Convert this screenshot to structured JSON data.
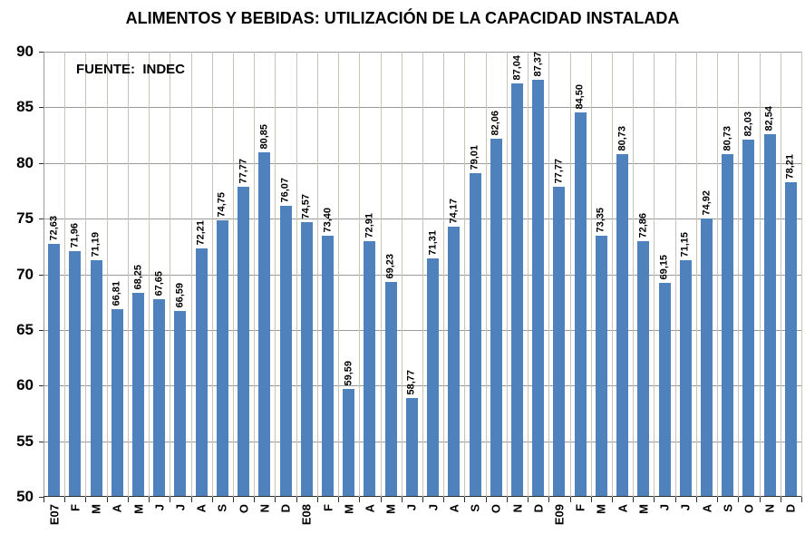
{
  "title": "ALIMENTOS Y BEBIDAS: UTILIZACIÓN DE LA CAPACIDAD INSTALADA",
  "source_note": "FUENTE:  INDEC",
  "chart_data": {
    "type": "bar",
    "title": "ALIMENTOS Y BEBIDAS: UTILIZACIÓN DE LA CAPACIDAD INSTALADA",
    "annotation": "FUENTE:  INDEC",
    "categories": [
      "E07",
      "F",
      "M",
      "A",
      "M",
      "J",
      "J",
      "A",
      "S",
      "O",
      "N",
      "D",
      "E08",
      "F",
      "M",
      "A",
      "M",
      "J",
      "J",
      "A",
      "S",
      "O",
      "N",
      "D",
      "E09",
      "F",
      "M",
      "A",
      "M",
      "J",
      "J",
      "A",
      "S",
      "O",
      "N",
      "D"
    ],
    "values": [
      72.63,
      71.96,
      71.19,
      66.81,
      68.25,
      67.65,
      66.59,
      72.21,
      74.75,
      77.77,
      80.85,
      76.07,
      74.57,
      73.4,
      59.59,
      72.91,
      69.23,
      58.77,
      71.31,
      74.17,
      79.01,
      82.06,
      87.04,
      87.37,
      77.77,
      84.5,
      73.35,
      80.73,
      72.86,
      69.15,
      71.15,
      74.92,
      80.73,
      82.03,
      82.54,
      78.21
    ],
    "value_labels": [
      "72,63",
      "71,96",
      "71,19",
      "66,81",
      "68,25",
      "67,65",
      "66,59",
      "72,21",
      "74,75",
      "77,77",
      "80,85",
      "76,07",
      "74,57",
      "73,40",
      "59,59",
      "72,91",
      "69,23",
      "58,77",
      "71,31",
      "74,17",
      "79,01",
      "82,06",
      "87,04",
      "87,37",
      "77,77",
      "84,50",
      "73,35",
      "80,73",
      "72,86",
      "69,15",
      "71,15",
      "74,92",
      "80,73",
      "82,03",
      "82,54",
      "78,21"
    ],
    "xlabel": "",
    "ylabel": "",
    "ylim": [
      50,
      90
    ],
    "yticks": [
      50,
      55,
      60,
      65,
      70,
      75,
      80,
      85,
      90
    ],
    "grid": "horizontal-major-and-vertical-category",
    "legend": "none",
    "bar_color": "#4F81BD",
    "value_label_rotation": "vertical-bottom-to-top",
    "category_label_rotation": "vertical-bottom-to-top"
  }
}
